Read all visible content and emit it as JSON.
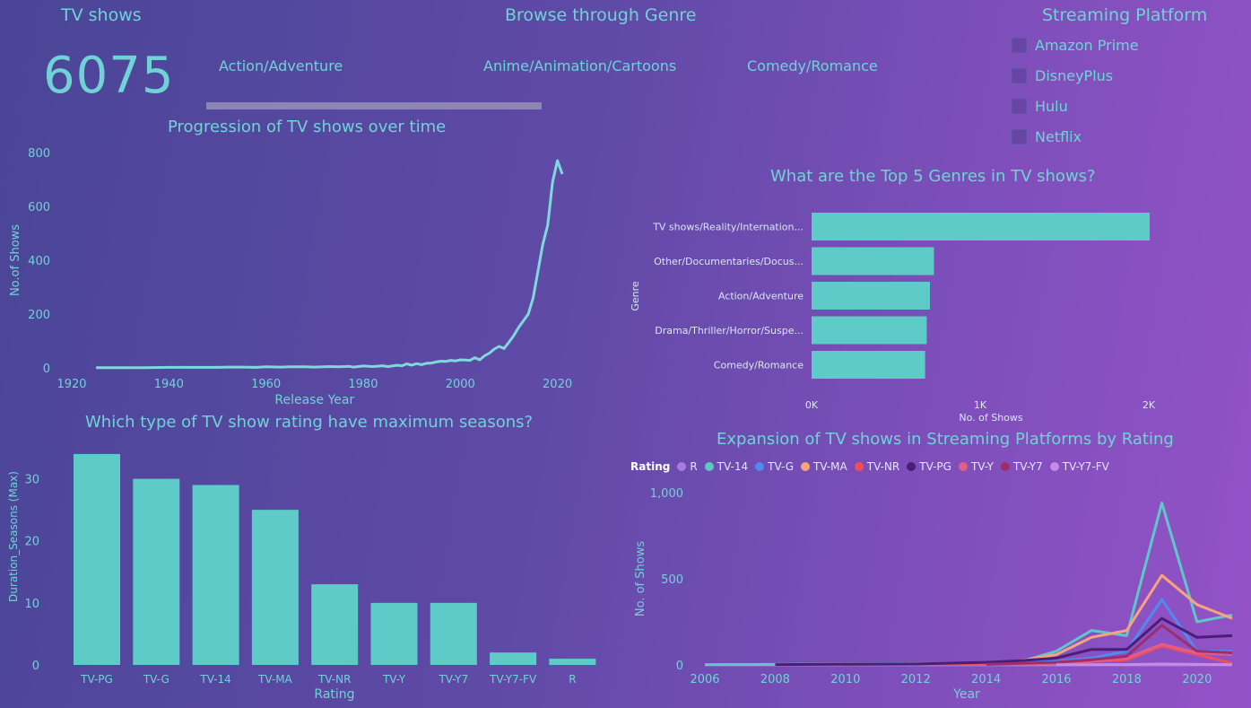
{
  "kpi": {
    "title": "TV shows",
    "value": "6075"
  },
  "genre_filter": {
    "title": "Browse through Genre",
    "buttons": [
      "Action/Adventure",
      "Anime/Animation/Cartoons",
      "Comedy/Romance"
    ]
  },
  "platform_filter": {
    "title": "Streaming Platform",
    "items": [
      "Amazon Prime",
      "DisneyPlus",
      "Hulu",
      "Netflix"
    ]
  },
  "colors": {
    "teal": "#5fcbc8",
    "text": "#6fd3d6"
  },
  "chart_data": [
    {
      "type": "line",
      "title": "Progression of TV shows over time",
      "xlabel": "Release Year",
      "ylabel": "No.of Shows",
      "xlim": [
        1920,
        2021
      ],
      "ylim": [
        0,
        800
      ],
      "xticks": [
        1920,
        1940,
        1960,
        1980,
        2000,
        2020
      ],
      "yticks": [
        0,
        200,
        400,
        600,
        800
      ],
      "grid": false,
      "x": [
        1925,
        1930,
        1935,
        1940,
        1945,
        1950,
        1953,
        1955,
        1958,
        1960,
        1963,
        1965,
        1968,
        1970,
        1973,
        1975,
        1977,
        1978,
        1980,
        1982,
        1984,
        1985,
        1986,
        1987,
        1988,
        1989,
        1990,
        1991,
        1992,
        1993,
        1994,
        1995,
        1996,
        1997,
        1998,
        1999,
        2000,
        2001,
        2002,
        2003,
        2004,
        2005,
        2006,
        2007,
        2008,
        2009,
        2010,
        2011,
        2012,
        2013,
        2014,
        2015,
        2016,
        2017,
        2018,
        2019,
        2020,
        2021
      ],
      "y": [
        1,
        1,
        1,
        2,
        2,
        2,
        3,
        3,
        2,
        4,
        3,
        4,
        4,
        3,
        5,
        4,
        6,
        3,
        7,
        5,
        8,
        5,
        7,
        10,
        8,
        15,
        10,
        16,
        12,
        17,
        18,
        22,
        25,
        24,
        28,
        26,
        30,
        29,
        28,
        38,
        30,
        45,
        55,
        70,
        80,
        72,
        95,
        120,
        150,
        175,
        200,
        260,
        360,
        460,
        530,
        690,
        770,
        720
      ]
    },
    {
      "type": "bar",
      "orientation": "horizontal",
      "title": "What are the Top 5 Genres in TV shows?",
      "xlabel": "No. of Shows",
      "ylabel": "Genre",
      "categories": [
        "TV shows/Reality/Internation...",
        "Other/Documentaries/Docus...",
        "Action/Adventure",
        "Drama/Thriller/Horror/Suspe...",
        "Comedy/Romance"
      ],
      "values": [
        2100,
        760,
        735,
        715,
        705
      ],
      "xticks": [
        "0K",
        "1K",
        "2K"
      ],
      "xlim": [
        0,
        2200
      ],
      "grid": false
    },
    {
      "type": "bar",
      "title": "Which type of TV show rating have maximum seasons?",
      "xlabel": "Rating",
      "ylabel": "Duration_Seasons (Max)",
      "categories": [
        "TV-PG",
        "TV-G",
        "TV-14",
        "TV-MA",
        "TV-NR",
        "TV-Y",
        "TV-Y7",
        "TV-Y7-FV",
        "R"
      ],
      "values": [
        34,
        30,
        29,
        25,
        13,
        10,
        10,
        2,
        1
      ],
      "yticks": [
        0,
        10,
        20,
        30
      ],
      "ylim": [
        0,
        35
      ],
      "grid": false
    },
    {
      "type": "line",
      "title": "Expansion of TV shows in Streaming Platforms by Rating",
      "xlabel": "Year",
      "ylabel": "No. of Shows",
      "legend_title": "Rating",
      "legend_position": "top-left",
      "xlim": [
        2006,
        2021
      ],
      "ylim": [
        0,
        1000
      ],
      "xticks": [
        2006,
        2008,
        2010,
        2012,
        2014,
        2016,
        2018,
        2020
      ],
      "yticks": [
        "0",
        "500",
        "1,000"
      ],
      "grid": false,
      "series": [
        {
          "name": "R",
          "color": "#a77be0",
          "x": [
            2006,
            2021
          ],
          "y": [
            0,
            0
          ]
        },
        {
          "name": "TV-14",
          "color": "#5ec8c8",
          "x": [
            2006,
            2008,
            2010,
            2012,
            2014,
            2015,
            2016,
            2017,
            2018,
            2019,
            2020,
            2021
          ],
          "y": [
            2,
            3,
            5,
            8,
            12,
            20,
            80,
            200,
            170,
            940,
            250,
            290
          ]
        },
        {
          "name": "TV-G",
          "color": "#4f8af0",
          "x": [
            2014,
            2015,
            2016,
            2017,
            2018,
            2019,
            2020,
            2021
          ],
          "y": [
            5,
            10,
            20,
            40,
            80,
            380,
            80,
            80
          ]
        },
        {
          "name": "TV-MA",
          "color": "#f5a47e",
          "x": [
            2008,
            2010,
            2012,
            2014,
            2015,
            2016,
            2017,
            2018,
            2019,
            2020,
            2021
          ],
          "y": [
            2,
            4,
            6,
            10,
            25,
            60,
            160,
            200,
            520,
            350,
            270
          ]
        },
        {
          "name": "TV-NR",
          "color": "#ef4f5a",
          "x": [
            2010,
            2012,
            2014,
            2016,
            2017,
            2018,
            2019,
            2020,
            2021
          ],
          "y": [
            2,
            3,
            5,
            10,
            20,
            30,
            110,
            60,
            10
          ]
        },
        {
          "name": "TV-PG",
          "color": "#4a1e78",
          "x": [
            2008,
            2010,
            2012,
            2014,
            2015,
            2016,
            2017,
            2018,
            2019,
            2020,
            2021
          ],
          "y": [
            2,
            4,
            6,
            15,
            25,
            40,
            90,
            90,
            270,
            160,
            170
          ]
        },
        {
          "name": "TV-Y",
          "color": "#e45c8a",
          "x": [
            2014,
            2016,
            2017,
            2018,
            2019,
            2020,
            2021
          ],
          "y": [
            2,
            10,
            20,
            40,
            120,
            70,
            60
          ]
        },
        {
          "name": "TV-Y7",
          "color": "#9a2f6b",
          "x": [
            2014,
            2016,
            2017,
            2018,
            2019,
            2020,
            2021
          ],
          "y": [
            3,
            15,
            30,
            50,
            230,
            80,
            70
          ]
        },
        {
          "name": "TV-Y7-FV",
          "color": "#c88ae8",
          "x": [
            2016,
            2018,
            2019,
            2020,
            2021
          ],
          "y": [
            1,
            2,
            5,
            3,
            2
          ]
        }
      ]
    }
  ]
}
